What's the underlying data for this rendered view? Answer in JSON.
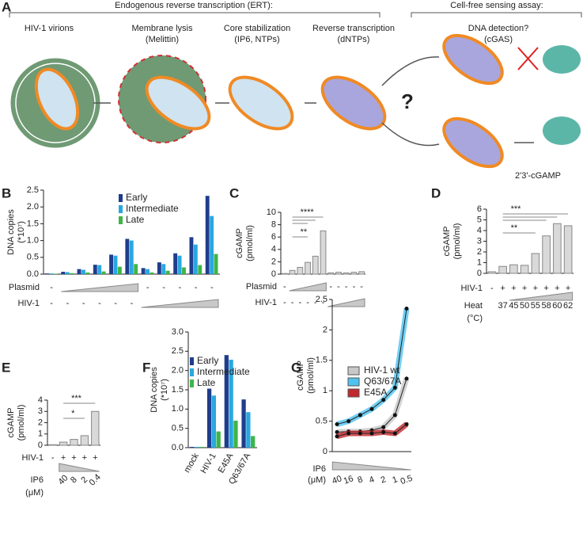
{
  "panel_labels": [
    "A",
    "B",
    "C",
    "D",
    "E",
    "F",
    "G"
  ],
  "schematic": {
    "header_left": "Endogenous reverse transcription (ERT):",
    "header_right": "Cell-free sensing assay:",
    "steps": [
      {
        "title": "HIV-1 virions"
      },
      {
        "title": "Membrane lysis",
        "detail": "(Melittin)"
      },
      {
        "title": "Core stabilization",
        "detail": "(IP6, NTPs)"
      },
      {
        "title": "Reverse transcription",
        "detail": "(dNTPs)"
      },
      {
        "title": "DNA detection?",
        "detail": "(cGAS)"
      }
    ],
    "question": "?",
    "product": "2'3'-cGAMP"
  },
  "chart_data": [
    {
      "type": "bar",
      "ylabel": "DNA copies",
      "ylabel2": "(*10⁷)",
      "ylim": [
        0,
        2.5
      ],
      "yticks": [
        {
          "value": 0,
          "label": "0.0"
        },
        0.5,
        {
          "value": 1,
          "label": "1.0"
        },
        1.5,
        {
          "value": 2,
          "label": "2.0"
        },
        2.5
      ],
      "series": [
        {
          "name": "Early",
          "color": "#1f3d8c",
          "values": [
            0.02,
            0.07,
            0.15,
            0.28,
            0.58,
            1.05,
            0.18,
            0.35,
            0.62,
            1.1,
            2.33
          ]
        },
        {
          "name": "Intermediate",
          "color": "#2aa7df",
          "values": [
            0.02,
            0.06,
            0.13,
            0.27,
            0.55,
            1.0,
            0.15,
            0.3,
            0.55,
            0.88,
            1.73
          ]
        },
        {
          "name": "Late",
          "color": "#3db54a",
          "values": [
            0.01,
            0.03,
            0.05,
            0.08,
            0.22,
            0.3,
            0.05,
            0.1,
            0.2,
            0.27,
            0.6
          ]
        }
      ],
      "rows": [
        {
          "label": "Plasmid",
          "marks": [
            "-",
            null,
            null,
            null,
            null,
            null,
            "-",
            "-",
            "-",
            "-",
            "-"
          ]
        },
        {
          "label": "HIV-1",
          "marks": [
            "-",
            "-",
            "-",
            "-",
            "-",
            "-",
            null,
            null,
            null,
            null,
            null
          ]
        }
      ]
    },
    {
      "type": "bar",
      "ylabel": "cGAMP",
      "ylabel2": "(pmol/ml)",
      "ylim": [
        0,
        10
      ],
      "yticks": [
        0,
        2,
        4,
        6,
        8,
        10
      ],
      "color": "#d9d9d9",
      "values": [
        0.1,
        0.6,
        1.1,
        1.9,
        2.9,
        7.0,
        0.2,
        0.3,
        0.2,
        0.3,
        0.4
      ],
      "annotations": [
        "****",
        "**"
      ],
      "rows": [
        {
          "label": "Plasmid",
          "marks": [
            "-",
            null,
            null,
            null,
            null,
            null,
            "-",
            "-",
            "-",
            "-",
            "-"
          ]
        },
        {
          "label": "HIV-1",
          "marks": [
            "-",
            "-",
            "-",
            "-",
            "-",
            "-",
            null,
            null,
            null,
            null,
            null
          ]
        }
      ]
    },
    {
      "type": "bar",
      "ylabel": "cGAMP",
      "ylabel2": "(pmol/ml)",
      "ylim": [
        0,
        6
      ],
      "yticks": [
        0,
        1,
        2,
        3,
        4,
        5,
        6
      ],
      "color": "#d9d9d9",
      "values": [
        0.15,
        0.65,
        0.8,
        0.75,
        1.85,
        3.5,
        4.65,
        4.45
      ],
      "annotations": [
        "***",
        "**"
      ],
      "rows": [
        {
          "label": "HIV-1",
          "marks": [
            "-",
            "+",
            "+",
            "+",
            "+",
            "+",
            "+",
            "+"
          ]
        },
        {
          "label": "Heat",
          "label2": "(°C)",
          "marks": [
            null,
            37,
            45,
            50,
            55,
            58,
            60,
            62
          ]
        }
      ]
    },
    {
      "type": "bar",
      "ylabel": "cGAMP",
      "ylabel2": "(pmol/ml)",
      "ylim": [
        0,
        4
      ],
      "yticks": [
        0,
        1,
        2,
        3,
        4
      ],
      "color": "#d9d9d9",
      "values": [
        0.05,
        0.28,
        0.52,
        0.85,
        3.0
      ],
      "annotations": [
        "***",
        "*"
      ],
      "rows": [
        {
          "label": "HIV-1",
          "marks": [
            "-",
            "+",
            "+",
            "+",
            "+"
          ]
        },
        {
          "label": "IP6",
          "label2": "(μM)",
          "marks": [
            null,
            40,
            8,
            2,
            0.4
          ]
        }
      ]
    },
    {
      "type": "bar",
      "ylabel": "DNA copies",
      "ylabel2": "(*10⁷)",
      "ylim": [
        0,
        3
      ],
      "yticks": [
        {
          "value": 0,
          "label": "0.0"
        },
        0.5,
        {
          "value": 1,
          "label": "1.0"
        },
        1.5,
        {
          "value": 2,
          "label": "2.0"
        },
        2.5,
        {
          "value": 3,
          "label": "3.0"
        }
      ],
      "categories": [
        "mock",
        "HIV-1",
        "E45A",
        "Q63/67A"
      ],
      "series": [
        {
          "name": "Early",
          "color": "#1f3d8c",
          "values": [
            0.02,
            1.53,
            2.4,
            1.25
          ]
        },
        {
          "name": "Intermediate",
          "color": "#2aa7df",
          "values": [
            0.02,
            1.35,
            2.28,
            0.92
          ]
        },
        {
          "name": "Late",
          "color": "#3db54a",
          "values": [
            0.02,
            0.42,
            0.7,
            0.3
          ]
        }
      ]
    },
    {
      "type": "line",
      "ylabel": "cGAMP",
      "ylabel2": "(pmol/ml)",
      "ylim": [
        0,
        2.5
      ],
      "yticks": [
        0,
        0.5,
        1,
        1.5,
        2,
        2.5
      ],
      "xlabel": "IP6",
      "xlabel2": "(μM)",
      "categories": [
        "40",
        "16",
        "8",
        "4",
        "2",
        "1",
        "0.5"
      ],
      "series": [
        {
          "name": "HIV-1 wt",
          "color": "#c8c8c8",
          "values": [
            0.32,
            0.33,
            0.33,
            0.35,
            0.4,
            0.6,
            1.2
          ]
        },
        {
          "name": "Q63/67A",
          "color": "#4fc3f0",
          "values": [
            0.45,
            0.5,
            0.6,
            0.7,
            0.85,
            1.05,
            2.35
          ]
        },
        {
          "name": "E45A",
          "color": "#c1272d",
          "values": [
            0.25,
            0.3,
            0.3,
            0.3,
            0.32,
            0.3,
            0.45
          ]
        }
      ]
    }
  ]
}
